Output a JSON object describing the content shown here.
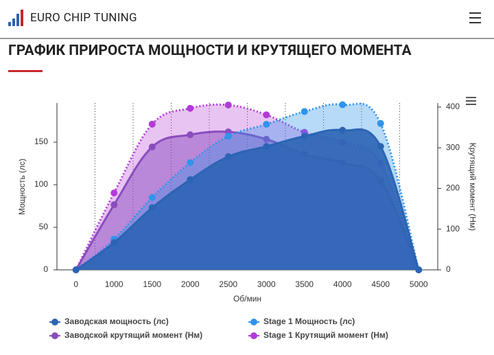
{
  "header": {
    "brand": "EURO CHIP TUNING",
    "title": "ГРАФИК ПРИРОСТА МОЩНОСТИ И КРУТЯЩЕГО МОМЕНТА"
  },
  "chart_data": {
    "type": "area",
    "x_label": "Об/мин",
    "y_label": "Мощность (лс)",
    "y2_label": "Крутящий момент (Нм)",
    "categories": [
      "0",
      "1000",
      "1500",
      "2000",
      "2500",
      "3000",
      "3500",
      "4000",
      "4500",
      "5000"
    ],
    "ylim": [
      0,
      196
    ],
    "yticks": [
      0,
      50,
      100,
      150
    ],
    "y2lim": [
      0,
      410
    ],
    "y2ticks": [
      0,
      100,
      200,
      300,
      400
    ],
    "series": [
      {
        "name": "Заводская мощность (лс)",
        "color": "#2c64b4",
        "values": [
          0,
          32,
          73,
          106,
          133,
          145,
          157,
          164,
          145,
          0
        ]
      },
      {
        "name": "Stage 1 Мощность (лс)",
        "color": "#2f94ec",
        "values": [
          0,
          36,
          85,
          126,
          157,
          171,
          186,
          194,
          172,
          0
        ]
      },
      {
        "name": "Заводской крутящий момент (Нм)",
        "color": "#8a4cbd",
        "axis": "y2",
        "values": [
          0,
          160,
          302,
          332,
          339,
          321,
          284,
          263,
          219,
          0
        ]
      },
      {
        "name": "Stage 1 Крутящий момент (Нм)",
        "color": "#b23bd8",
        "axis": "y2",
        "values": [
          0,
          189,
          358,
          397,
          405,
          381,
          338,
          314,
          262,
          0
        ]
      }
    ]
  }
}
